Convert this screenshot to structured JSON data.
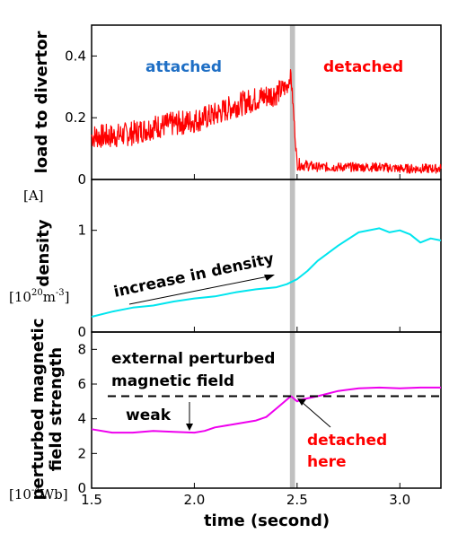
{
  "chart_data": [
    {
      "type": "line",
      "ylabel": "load to divertor",
      "unit": "[A]",
      "ylim": [
        0,
        0.5
      ],
      "yticks": [
        "0",
        "0.2",
        "0.4"
      ],
      "yticks_values": [
        0,
        0.2,
        0.4
      ],
      "color": "#ff0000",
      "annotations": {
        "left": "attached",
        "right": "detached"
      },
      "annotation_colors": {
        "left": "#1f6fc5",
        "right": "#ff0000"
      },
      "series": [
        {
          "x": [
            1.5,
            1.6,
            1.7,
            1.8,
            1.9,
            2.0,
            2.1,
            2.2,
            2.3,
            2.4,
            2.45,
            2.47,
            2.5,
            2.6,
            2.7,
            2.8,
            2.9,
            3.0,
            3.1,
            3.2
          ],
          "values": [
            0.14,
            0.14,
            0.15,
            0.17,
            0.18,
            0.19,
            0.21,
            0.24,
            0.26,
            0.28,
            0.3,
            0.34,
            0.05,
            0.04,
            0.04,
            0.04,
            0.04,
            0.035,
            0.035,
            0.035
          ],
          "noise": [
            0.04,
            0.04,
            0.04,
            0.04,
            0.04,
            0.04,
            0.04,
            0.04,
            0.04,
            0.04,
            0.03,
            0.02,
            0.02,
            0.015,
            0.015,
            0.015,
            0.015,
            0.015,
            0.015,
            0.015
          ]
        }
      ]
    },
    {
      "type": "line",
      "ylabel": "density",
      "unit_prefix": "[10",
      "unit_exp1": "20",
      "unit_mid": "m",
      "unit_exp2": "-3",
      "unit_suffix": "]",
      "ylim": [
        0,
        1.5
      ],
      "yticks": [
        "0",
        "1"
      ],
      "yticks_values": [
        0,
        1
      ],
      "color": "#00e5ee",
      "annotation": "increase in density",
      "series": [
        {
          "x": [
            1.5,
            1.6,
            1.7,
            1.8,
            1.9,
            2.0,
            2.1,
            2.2,
            2.3,
            2.4,
            2.45,
            2.5,
            2.55,
            2.6,
            2.7,
            2.8,
            2.9,
            2.95,
            3.0,
            3.05,
            3.1,
            3.15,
            3.2
          ],
          "values": [
            0.15,
            0.2,
            0.24,
            0.26,
            0.3,
            0.33,
            0.35,
            0.39,
            0.42,
            0.44,
            0.47,
            0.52,
            0.6,
            0.7,
            0.85,
            0.98,
            1.02,
            0.98,
            1.0,
            0.96,
            0.88,
            0.92,
            0.9
          ]
        }
      ]
    },
    {
      "type": "line",
      "ylabel_line1": "perturbed magnetic",
      "ylabel_line2": "field strength",
      "unit_prefix": "[10",
      "unit_exp": "-4",
      "unit_suffix": "Wb]",
      "xlabel": "time (second)",
      "xlim": [
        1.5,
        3.2
      ],
      "xticks": [
        "1.5",
        "2.0",
        "2.5",
        "3.0"
      ],
      "xticks_values": [
        1.5,
        2.0,
        2.5,
        3.0
      ],
      "ylim": [
        0,
        9
      ],
      "yticks": [
        "0",
        "2",
        "4",
        "6",
        "8"
      ],
      "yticks_values": [
        0,
        2,
        4,
        6,
        8
      ],
      "color": "#ee00ee",
      "threshold": 5.3,
      "annotations": {
        "title_line1": "external perturbed",
        "title_line2": "magnetic field",
        "weak": "weak",
        "detached_line1": "detached",
        "detached_line2": "here"
      },
      "annotation_colors": {
        "detached": "#ff0000"
      },
      "series": [
        {
          "x": [
            1.5,
            1.6,
            1.7,
            1.8,
            1.9,
            2.0,
            2.05,
            2.1,
            2.2,
            2.3,
            2.35,
            2.4,
            2.45,
            2.47,
            2.5,
            2.52,
            2.6,
            2.7,
            2.8,
            2.9,
            3.0,
            3.1,
            3.2
          ],
          "values": [
            3.4,
            3.2,
            3.2,
            3.3,
            3.25,
            3.2,
            3.3,
            3.5,
            3.7,
            3.9,
            4.1,
            4.6,
            5.1,
            5.3,
            5.0,
            5.1,
            5.3,
            5.6,
            5.75,
            5.8,
            5.75,
            5.8,
            5.8
          ]
        }
      ]
    }
  ],
  "shade_band": [
    2.465,
    2.49
  ]
}
